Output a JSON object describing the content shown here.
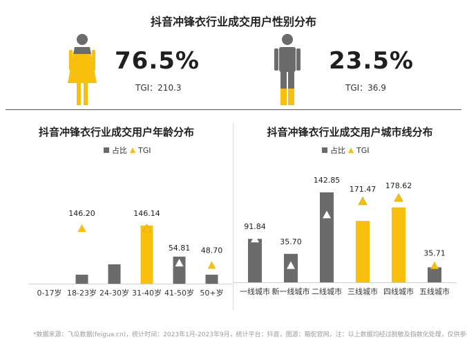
{
  "header": {
    "title": "抖音冲锋衣行业成交用户性别分布"
  },
  "gender": {
    "female": {
      "percent": "76.5%",
      "tgi": "TGI：210.3",
      "share": 0.765,
      "icon": "female-figure-icon"
    },
    "male": {
      "percent": "23.5%",
      "tgi": "TGI：36.9",
      "share": 0.235,
      "icon": "male-figure-icon"
    }
  },
  "colors": {
    "gray": "#6b6b6b",
    "yellow": "#f8c00c",
    "axis": "#cfcfcf",
    "text": "#1f1f1f"
  },
  "legend": {
    "bar_label": "占比",
    "tgi_label": "TGI"
  },
  "chart_data": [
    {
      "type": "bar",
      "title": "抖音冲锋衣行业成交用户年龄分布",
      "categories": [
        "0-17岁",
        "18-23岁",
        "24-30岁",
        "31-40岁",
        "41-50岁",
        "50+岁"
      ],
      "series": [
        {
          "name": "占比",
          "values": [
            0.0,
            3.5,
            7.5,
            22.5,
            10.5,
            3.5
          ],
          "colors": [
            "#6b6b6b",
            "#6b6b6b",
            "#6b6b6b",
            "#f8c00c",
            "#6b6b6b",
            "#6b6b6b"
          ]
        },
        {
          "name": "TGI",
          "values": [
            null,
            146.2,
            null,
            146.14,
            54.81,
            48.7
          ],
          "labels": [
            "",
            "146.20",
            "",
            "146.14",
            "54.81",
            "48.70"
          ],
          "marker": "triangle"
        }
      ],
      "ylim": [
        0,
        30
      ],
      "legend_position": "top"
    },
    {
      "type": "bar",
      "title": "抖音冲锋衣行业成交用户城市线分布",
      "categories": [
        "一线城市",
        "新一线城市",
        "二线城市",
        "三线城市",
        "四线城市",
        "五线城市"
      ],
      "series": [
        {
          "name": "占比",
          "values": [
            14.5,
            9.5,
            30.0,
            20.5,
            25.0,
            5.0
          ],
          "colors": [
            "#6b6b6b",
            "#6b6b6b",
            "#6b6b6b",
            "#f8c00c",
            "#f8c00c",
            "#6b6b6b"
          ]
        },
        {
          "name": "TGI",
          "values": [
            91.84,
            35.7,
            142.85,
            171.47,
            178.62,
            35.71
          ],
          "labels": [
            "91.84",
            "35.70",
            "142.85",
            "171.47",
            "178.62",
            "35.71"
          ],
          "marker": "triangle"
        }
      ],
      "ylim": [
        0,
        30
      ],
      "legend_position": "top"
    }
  ],
  "footer": {
    "note": "*数据来源：飞瓜数据(feigua.cn)，统计时间：2023年1月-2023年9月，统计平台：抖音，图源：箱驼官网，注：以上数据均经过脱敏及指数化处理，仅供参考"
  }
}
